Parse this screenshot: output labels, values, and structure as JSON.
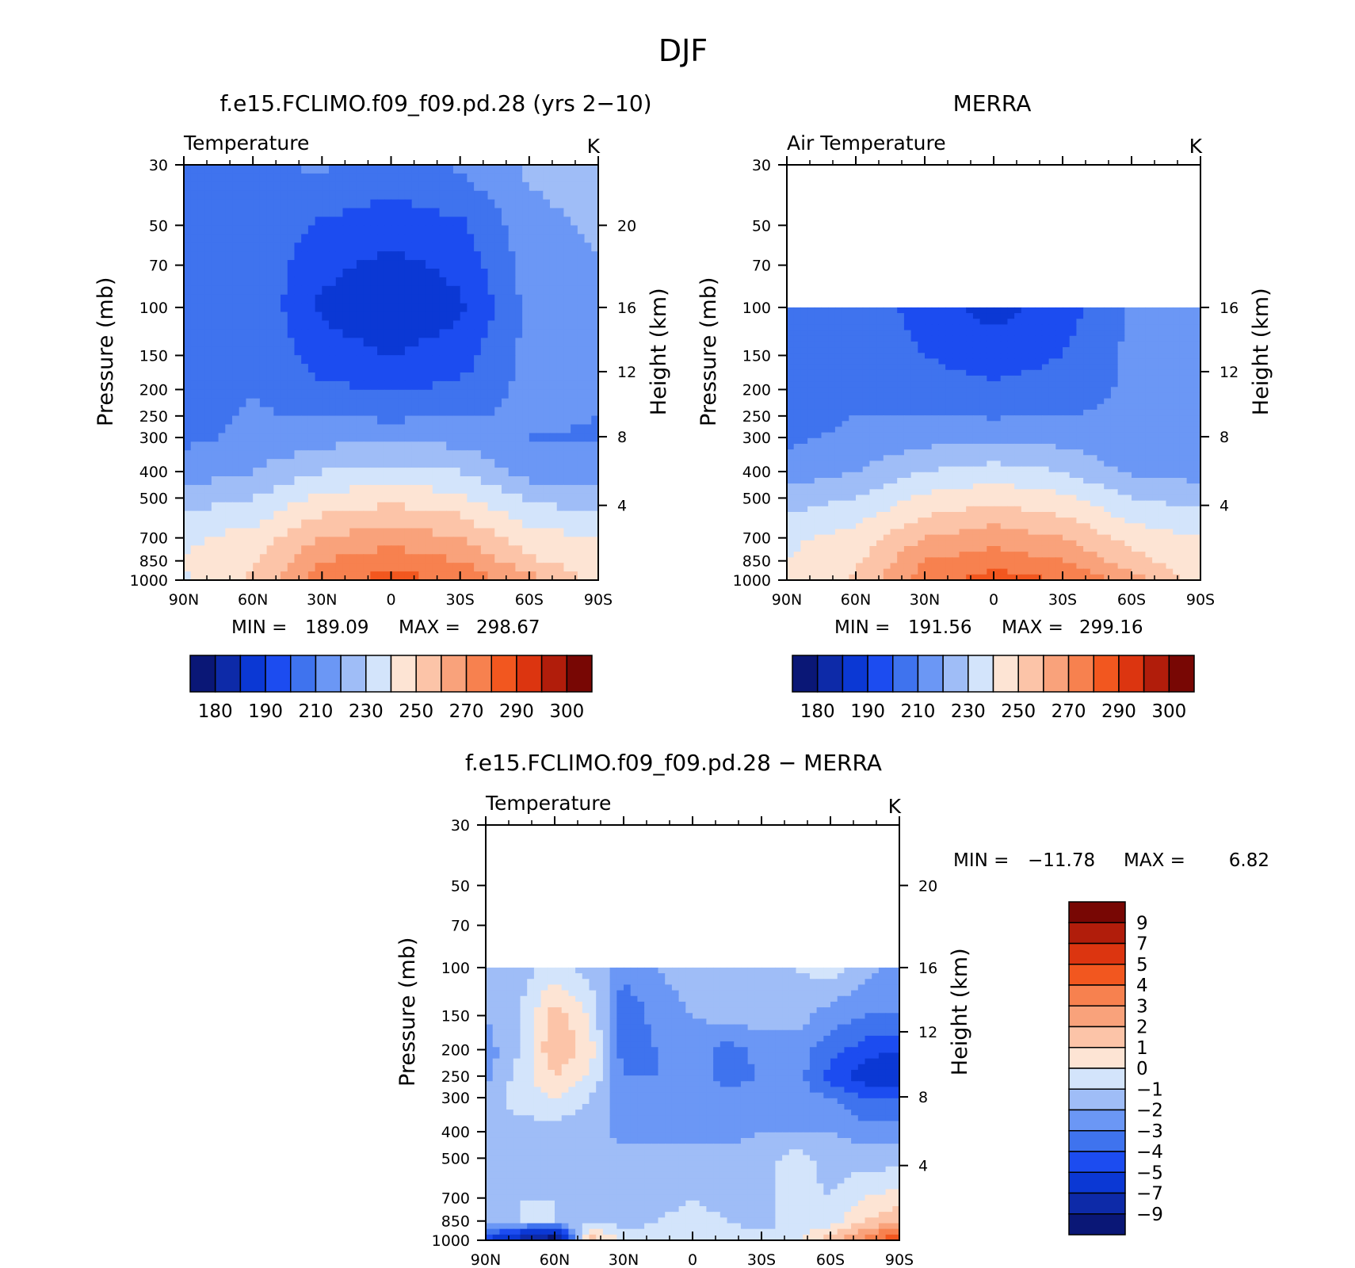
{
  "figure": {
    "title": "DJF"
  },
  "chart_data": [
    {
      "type": "heatmap",
      "id": "model",
      "title": "f.e15.FCLIMO.f09_f09.pd.28 (yrs 2-10)",
      "variable": "Temperature",
      "units": "K",
      "ylabel": "Pressure (mb)",
      "y2label": "Height (km)",
      "x_ticks": [
        "90N",
        "60N",
        "30N",
        "0",
        "30S",
        "60S",
        "90S"
      ],
      "y_ticks": [
        30,
        50,
        70,
        100,
        150,
        200,
        250,
        300,
        400,
        500,
        700,
        850,
        1000
      ],
      "y2_ticks": [
        20,
        16,
        12,
        8,
        4
      ],
      "ylim": [
        1000,
        30
      ],
      "y_scale": "log",
      "data_top_mb": 30,
      "min_label": "MIN =",
      "min_value": "189.09",
      "max_label": "MAX =",
      "max_value": "298.67",
      "colorbar": {
        "orientation": "horizontal",
        "colors": [
          "#0a1776",
          "#0d2aa8",
          "#0b38d4",
          "#1c4cf0",
          "#3f73ee",
          "#6b97f5",
          "#9fbdf7",
          "#d3e4fb",
          "#fde4d4",
          "#fcc4a8",
          "#f9a27b",
          "#f7814f",
          "#f2571f",
          "#dc3510",
          "#b11d0b",
          "#780704"
        ],
        "tick_labels": [
          "180",
          "190",
          "210",
          "230",
          "250",
          "270",
          "290",
          "300"
        ]
      },
      "zonal_temperature_K": {
        "levels_mb": [
          30,
          50,
          70,
          100,
          150,
          200,
          250,
          300,
          400,
          500,
          700,
          850,
          1000
        ],
        "lat": [
          "90N",
          "60N",
          "30N",
          "0",
          "30S",
          "60S",
          "90S"
        ],
        "rows": [
          [
            214,
            218,
            222,
            215,
            222,
            232,
            238
          ],
          [
            212,
            219,
            208,
            205,
            208,
            226,
            232
          ],
          [
            210,
            218,
            203,
            197,
            203,
            225,
            229
          ],
          [
            212,
            219,
            198,
            191,
            198,
            223,
            226
          ],
          [
            215,
            219,
            205,
            200,
            205,
            223,
            225
          ],
          [
            216,
            220,
            212,
            209,
            212,
            223,
            221
          ],
          [
            217,
            221,
            219,
            218,
            219,
            222,
            220
          ],
          [
            218,
            222,
            226,
            228,
            226,
            220,
            219
          ],
          [
            224,
            230,
            240,
            244,
            240,
            226,
            224
          ],
          [
            235,
            240,
            252,
            257,
            252,
            238,
            234
          ],
          [
            248,
            254,
            270,
            276,
            270,
            254,
            250
          ],
          [
            250,
            258,
            280,
            286,
            280,
            262,
            252
          ],
          [
            249,
            262,
            285,
            295,
            288,
            275,
            255
          ]
        ]
      }
    },
    {
      "type": "heatmap",
      "id": "obs",
      "title": "MERRA",
      "variable": "Air Temperature",
      "units": "K",
      "ylabel": "Pressure (mb)",
      "y2label": "Height (km)",
      "x_ticks": [
        "90N",
        "60N",
        "30N",
        "0",
        "30S",
        "60S",
        "90S"
      ],
      "y_ticks": [
        30,
        50,
        70,
        100,
        150,
        200,
        250,
        300,
        400,
        500,
        700,
        850,
        1000
      ],
      "y2_ticks": [
        16,
        12,
        8,
        4
      ],
      "ylim": [
        1000,
        30
      ],
      "y_scale": "log",
      "data_top_mb": 100,
      "min_label": "MIN =",
      "min_value": "191.56",
      "max_label": "MAX =",
      "max_value": "299.16",
      "colorbar": {
        "orientation": "horizontal",
        "colors": [
          "#0a1776",
          "#0d2aa8",
          "#0b38d4",
          "#1c4cf0",
          "#3f73ee",
          "#6b97f5",
          "#9fbdf7",
          "#d3e4fb",
          "#fde4d4",
          "#fcc4a8",
          "#f9a27b",
          "#f7814f",
          "#f2571f",
          "#dc3510",
          "#b11d0b",
          "#780704"
        ],
        "tick_labels": [
          "180",
          "190",
          "210",
          "230",
          "250",
          "270",
          "290",
          "300"
        ]
      },
      "zonal_temperature_K": {
        "levels_mb": [
          100,
          150,
          200,
          250,
          300,
          400,
          500,
          700,
          850,
          1000
        ],
        "lat": [
          "90N",
          "60N",
          "30N",
          "0",
          "30S",
          "60S",
          "90S"
        ],
        "rows": [
          [
            210,
            218,
            205,
            196,
            205,
            222,
            224
          ],
          [
            213,
            218,
            210,
            205,
            210,
            222,
            223
          ],
          [
            215,
            219,
            214,
            212,
            214,
            222,
            221
          ],
          [
            217,
            220,
            220,
            219,
            220,
            222,
            220
          ],
          [
            218,
            222,
            226,
            228,
            226,
            221,
            220
          ],
          [
            224,
            230,
            240,
            244,
            240,
            228,
            226
          ],
          [
            235,
            240,
            252,
            257,
            252,
            240,
            236
          ],
          [
            248,
            254,
            270,
            276,
            270,
            256,
            250
          ],
          [
            250,
            258,
            280,
            286,
            280,
            264,
            252
          ],
          [
            250,
            262,
            285,
            295,
            290,
            275,
            254
          ]
        ]
      }
    },
    {
      "type": "heatmap",
      "id": "diff",
      "title": "f.e15.FCLIMO.f09_f09.pd.28 - MERRA",
      "variable": "Temperature",
      "units": "K",
      "ylabel": "Pressure (mb)",
      "y2label": "Height (km)",
      "x_ticks": [
        "90N",
        "60N",
        "30N",
        "0",
        "30S",
        "60S",
        "90S"
      ],
      "y_ticks": [
        30,
        50,
        70,
        100,
        150,
        200,
        250,
        300,
        400,
        500,
        700,
        850,
        1000
      ],
      "y2_ticks": [
        20,
        16,
        12,
        8,
        4
      ],
      "ylim": [
        1000,
        30
      ],
      "y_scale": "log",
      "data_top_mb": 100,
      "min_label": "MIN =",
      "min_value": "-11.78",
      "max_label": "MAX =",
      "max_value": "6.82",
      "colorbar": {
        "orientation": "vertical",
        "colors": [
          "#780704",
          "#b11d0b",
          "#dc3510",
          "#f2571f",
          "#f7814f",
          "#f9a27b",
          "#fcc4a8",
          "#fde4d4",
          "#d3e4fb",
          "#9fbdf7",
          "#6b97f5",
          "#3f73ee",
          "#1c4cf0",
          "#0b38d4",
          "#0d2aa8",
          "#0a1776"
        ],
        "tick_labels": [
          "9",
          "7",
          "5",
          "4",
          "3",
          "2",
          "1",
          "0",
          "-1",
          "-2",
          "-3",
          "-4",
          "-5",
          "-7",
          "-9"
        ]
      },
      "temperature_difference_K": {
        "levels_mb": [
          100,
          150,
          200,
          250,
          300,
          400,
          500,
          700,
          850,
          1000
        ],
        "lat": [
          "90N",
          "75N",
          "60N",
          "45N",
          "30N",
          "15N",
          "0",
          "15S",
          "30S",
          "45S",
          "60S",
          "75S",
          "90S"
        ],
        "rows": [
          [
            -1.5,
            -1.5,
            -0.5,
            -1.5,
            -2.5,
            -2,
            -1.5,
            -1.5,
            -1.5,
            -1,
            -0.5,
            -1.5,
            -2.5
          ],
          [
            -2,
            -1,
            1.5,
            0,
            -4,
            -2.5,
            -2,
            -1.5,
            -1.5,
            -1.5,
            -2.5,
            -3,
            -3
          ],
          [
            -2.5,
            -1,
            2,
            0.5,
            -3.5,
            -3,
            -2.5,
            -3.5,
            -2.5,
            -2.5,
            -3.5,
            -4.5,
            -5
          ],
          [
            -2.5,
            -0.5,
            1,
            0,
            -3,
            -3,
            -2.5,
            -3.5,
            -3,
            -2.5,
            -4.5,
            -5.5,
            -6.5
          ],
          [
            -1.5,
            -0.5,
            0,
            -1,
            -2.5,
            -2.5,
            -2.5,
            -2.5,
            -2.5,
            -2.5,
            -3,
            -4,
            -4
          ],
          [
            -1.5,
            -1.5,
            -1.5,
            -1.5,
            -2.5,
            -2.5,
            -2.5,
            -2.5,
            -2,
            -2,
            -2,
            -2.5,
            -2.5
          ],
          [
            -1.5,
            -1.5,
            -1.5,
            -1.5,
            -1.5,
            -1.5,
            -1.5,
            -1.5,
            -1.5,
            -0.5,
            -1.5,
            -1.5,
            -1.5
          ],
          [
            -1.5,
            -1,
            -1,
            -1.5,
            -1.5,
            -1.5,
            -1,
            -1.5,
            -1.5,
            -0.5,
            -1,
            0,
            0.5
          ],
          [
            -1.5,
            -1,
            -1,
            -1,
            -1.5,
            -1,
            -0.5,
            -1,
            -1.5,
            -0.5,
            -0.5,
            1,
            2
          ],
          [
            -5,
            -8,
            -11,
            2,
            -0.5,
            -0.5,
            -0.5,
            -0.5,
            -0.5,
            -0.5,
            1.5,
            3.5,
            5
          ]
        ]
      }
    }
  ]
}
